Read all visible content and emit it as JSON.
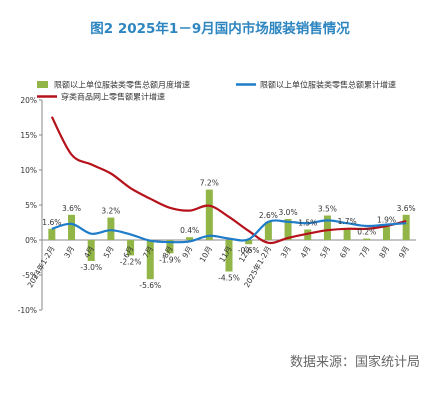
{
  "title": "图2 2025年1－9月国内市场服装销售情况",
  "source": "数据来源：国家统计局",
  "colors": {
    "bar": "#92b547",
    "cumulative": "#1f7cc8",
    "online": "#b5121b",
    "title": "#2e86c1",
    "axis": "#888888"
  },
  "chart_data": {
    "type": "bar",
    "ylim": [
      -10,
      20
    ],
    "yticks": [
      "-10%",
      "-5%",
      "0%",
      "5%",
      "10%",
      "15%",
      "20%"
    ],
    "ytick_values": [
      -10,
      -5,
      0,
      5,
      10,
      15,
      20
    ],
    "grid": false,
    "legend_position": "top",
    "categories": [
      "2024年1-2月",
      "3月",
      "4月",
      "5月",
      "6月",
      "7月",
      "8月",
      "9月",
      "10月",
      "11月",
      "12月",
      "2025年1-2月",
      "3月",
      "4月",
      "5月",
      "6月",
      "7月",
      "8月",
      "9月"
    ],
    "series": [
      {
        "name": "限额以上单位服装类零售总额月度增速",
        "type": "bar",
        "values": [
          1.6,
          3.6,
          -3.0,
          3.2,
          -2.2,
          -5.6,
          -1.9,
          0.4,
          7.2,
          -4.5,
          -0.6,
          2.6,
          3.0,
          1.5,
          3.5,
          1.7,
          0.2,
          1.9,
          3.6
        ],
        "labels": [
          "1.6%",
          "3.6%",
          "-3.0%",
          "3.2%",
          "-2.2%",
          "-5.6%",
          "-1.9%",
          "0.4%",
          "7.2%",
          "-4.5%",
          "-0.6%",
          "2.6%",
          "3.0%",
          "1.5%",
          "3.5%",
          "1.7%",
          "0.2%",
          "1.9%",
          "3.6%"
        ]
      },
      {
        "name": "限额以上单位服装类零售总额累计增速",
        "type": "line",
        "values": [
          1.6,
          2.3,
          0.9,
          1.4,
          0.8,
          -0.1,
          -0.3,
          -0.2,
          0.6,
          0.2,
          0.1,
          2.6,
          2.6,
          2.4,
          2.8,
          2.4,
          2.0,
          2.2,
          2.4
        ]
      },
      {
        "name": "穿类商品网上零售额累计增速",
        "type": "line",
        "values": [
          17.6,
          12.2,
          10.8,
          9.5,
          7.4,
          5.9,
          4.6,
          4.2,
          4.9,
          3.3,
          1.3,
          -0.4,
          0.3,
          0.9,
          1.4,
          1.6,
          1.6,
          2.0,
          2.7
        ]
      }
    ]
  }
}
